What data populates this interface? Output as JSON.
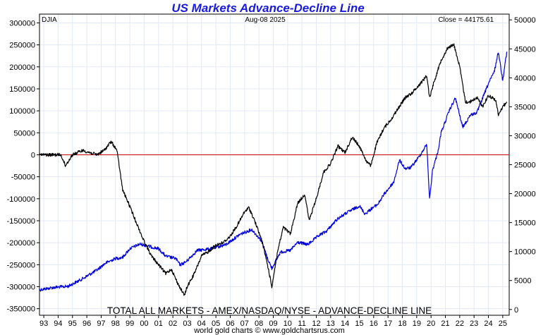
{
  "chart_data": {
    "type": "line",
    "title": "US Markets Advance-Decline Line",
    "subtitle": "TOTAL ALL MARKETS - AMEX/NASDAQ/NYSE - ADVANCE-DECLINE LINE",
    "header": {
      "symbol": "DJIA",
      "date": "Aug-08  2025",
      "close": "Close = 44175.61"
    },
    "credit": "world gold charts © www.goldchartsrus.com",
    "xlim": [
      1993.0,
      2025.75
    ],
    "x_ticks": [
      {
        "year": 1993.3,
        "label": "93"
      },
      {
        "year": 1994.3,
        "label": "94"
      },
      {
        "year": 1995.3,
        "label": "95"
      },
      {
        "year": 1996.3,
        "label": "96"
      },
      {
        "year": 1997.3,
        "label": "97"
      },
      {
        "year": 1998.3,
        "label": "98"
      },
      {
        "year": 1999.3,
        "label": "99"
      },
      {
        "year": 2000.3,
        "label": "00"
      },
      {
        "year": 2001.3,
        "label": "01"
      },
      {
        "year": 2002.3,
        "label": "02"
      },
      {
        "year": 2003.3,
        "label": "03"
      },
      {
        "year": 2004.3,
        "label": "04"
      },
      {
        "year": 2005.3,
        "label": "05"
      },
      {
        "year": 2006.3,
        "label": "06"
      },
      {
        "year": 2007.3,
        "label": "07"
      },
      {
        "year": 2008.3,
        "label": "08"
      },
      {
        "year": 2009.3,
        "label": "09"
      },
      {
        "year": 2010.3,
        "label": "10"
      },
      {
        "year": 2011.3,
        "label": "11"
      },
      {
        "year": 2012.3,
        "label": "12"
      },
      {
        "year": 2013.3,
        "label": "13"
      },
      {
        "year": 2014.3,
        "label": "14"
      },
      {
        "year": 2015.3,
        "label": "15"
      },
      {
        "year": 2016.3,
        "label": "16"
      },
      {
        "year": 2017.3,
        "label": "17"
      },
      {
        "year": 2018.3,
        "label": "18"
      },
      {
        "year": 2019.3,
        "label": "19"
      },
      {
        "year": 2020.3,
        "label": "20"
      },
      {
        "year": 2021.3,
        "label": "21"
      },
      {
        "year": 2022.3,
        "label": "22"
      },
      {
        "year": 2023.3,
        "label": "23"
      },
      {
        "year": 2024.3,
        "label": "24"
      },
      {
        "year": 2025.3,
        "label": "25"
      }
    ],
    "left_axis": {
      "ylim": [
        -365000,
        320000
      ],
      "ticks": [
        300000,
        250000,
        200000,
        150000,
        100000,
        50000,
        0,
        -50000,
        -100000,
        -150000,
        -200000,
        -250000,
        -300000,
        -350000
      ],
      "labels": [
        "300000",
        "250000",
        "200000",
        "150000",
        "100000",
        "50000",
        "0",
        "-50000",
        "-100000",
        "-150000",
        "-200000",
        "-250000",
        "-300000",
        "-350000"
      ]
    },
    "right_axis": {
      "ylim": [
        -1000,
        51000
      ],
      "ticks": [
        50000,
        45000,
        40000,
        35000,
        30000,
        25000,
        20000,
        15000,
        10000,
        5000,
        0
      ],
      "labels": [
        "50000",
        "45000",
        "40000",
        "35000",
        "30000",
        "25000",
        "20000",
        "15000",
        "10000",
        "5000",
        "0"
      ]
    },
    "zero_line": {
      "value": 0,
      "color": "#cc0000"
    },
    "series": [
      {
        "name": "Advance-Decline Line",
        "axis": "left",
        "color": "#000000",
        "x": [
          1993.0,
          1994.0,
          1994.5,
          1994.8,
          1995.3,
          1996.0,
          1997.0,
          1997.5,
          1998.0,
          1998.4,
          1998.8,
          1999.2,
          1999.7,
          2000.2,
          2000.8,
          2001.3,
          2001.8,
          2002.2,
          2002.6,
          2003.1,
          2003.3,
          2003.8,
          2004.3,
          2004.8,
          2005.3,
          2005.8,
          2006.3,
          2006.8,
          2007.3,
          2007.6,
          2008.0,
          2008.5,
          2008.9,
          2009.2,
          2009.6,
          2010.0,
          2010.5,
          2011.0,
          2011.5,
          2011.8,
          2012.3,
          2012.8,
          2013.3,
          2013.8,
          2014.3,
          2014.8,
          2015.3,
          2015.8,
          2016.1,
          2016.5,
          2017.0,
          2017.5,
          2018.0,
          2018.5,
          2018.95,
          2019.5,
          2020.0,
          2020.2,
          2020.5,
          2021.0,
          2021.5,
          2021.9,
          2022.3,
          2022.7,
          2023.0,
          2023.5,
          2023.9,
          2024.3,
          2024.8,
          2025.0,
          2025.3,
          2025.6
        ],
        "values": [
          0,
          0,
          0,
          -25000,
          0,
          10000,
          0,
          10000,
          30000,
          10000,
          -80000,
          -110000,
          -150000,
          -190000,
          -230000,
          -250000,
          -270000,
          -260000,
          -290000,
          -320000,
          -300000,
          -270000,
          -230000,
          -220000,
          -205000,
          -200000,
          -185000,
          -160000,
          -130000,
          -120000,
          -150000,
          -195000,
          -250000,
          -300000,
          -220000,
          -165000,
          -180000,
          -110000,
          -90000,
          -150000,
          -100000,
          -40000,
          -20000,
          20000,
          5000,
          40000,
          20000,
          -15000,
          -25000,
          25000,
          60000,
          80000,
          105000,
          130000,
          140000,
          160000,
          180000,
          130000,
          165000,
          215000,
          245000,
          250000,
          200000,
          120000,
          120000,
          130000,
          110000,
          135000,
          125000,
          90000,
          110000,
          120000
        ]
      },
      {
        "name": "DJIA",
        "axis": "right",
        "color": "#0000dd",
        "x": [
          1993.0,
          1994.0,
          1995.0,
          1996.0,
          1997.0,
          1997.6,
          1998.3,
          1998.8,
          1999.3,
          2000.0,
          2000.8,
          2001.3,
          2001.8,
          2002.5,
          2002.8,
          2003.2,
          2004.0,
          2005.0,
          2006.0,
          2007.0,
          2007.8,
          2008.5,
          2008.9,
          2009.2,
          2009.8,
          2010.5,
          2011.0,
          2011.7,
          2012.5,
          2013.0,
          2013.8,
          2014.5,
          2015.3,
          2015.7,
          2016.1,
          2016.6,
          2017.0,
          2017.7,
          2018.1,
          2018.5,
          2018.9,
          2019.5,
          2020.0,
          2020.2,
          2020.4,
          2020.8,
          2021.0,
          2021.6,
          2022.0,
          2022.5,
          2022.8,
          2023.0,
          2023.5,
          2023.9,
          2024.3,
          2024.7,
          2025.0,
          2025.3,
          2025.45,
          2025.6
        ],
        "values": [
          3400,
          3800,
          4000,
          5300,
          6800,
          8000,
          8800,
          9000,
          10500,
          11300,
          10800,
          10500,
          9200,
          8800,
          7700,
          8200,
          10200,
          10500,
          11200,
          13000,
          13800,
          11800,
          8800,
          7100,
          9900,
          10200,
          11600,
          11200,
          12800,
          13500,
          15700,
          16800,
          17900,
          16500,
          17300,
          18200,
          19800,
          22000,
          25800,
          24300,
          24500,
          26500,
          28500,
          19000,
          24000,
          27500,
          30500,
          34500,
          36500,
          31500,
          32500,
          33500,
          34000,
          36500,
          39000,
          41000,
          44500,
          39500,
          42500,
          44500
        ]
      }
    ]
  }
}
